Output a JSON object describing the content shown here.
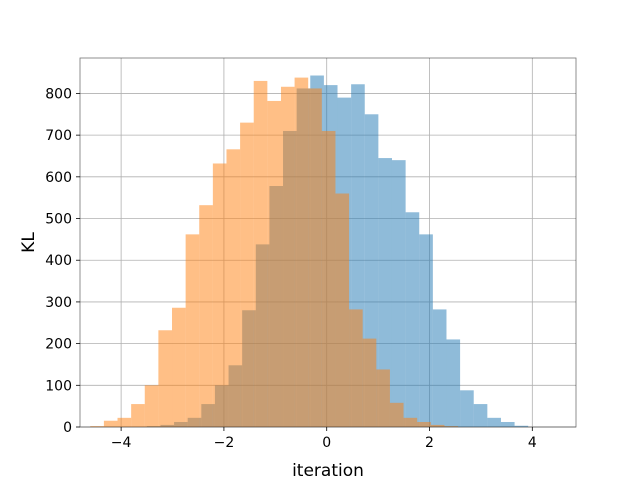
{
  "chart_data": {
    "type": "bar",
    "subtype": "histogram",
    "title": "",
    "xlabel": "iteration",
    "ylabel": "KL",
    "xlim": [
      -4.8,
      4.85
    ],
    "ylim": [
      0,
      885
    ],
    "x_ticks": [
      -4,
      -2,
      0,
      2,
      4
    ],
    "x_tick_labels": [
      "−4",
      "−2",
      "0",
      "2",
      "4"
    ],
    "y_ticks": [
      0,
      100,
      200,
      300,
      400,
      500,
      600,
      700,
      800
    ],
    "y_tick_labels": [
      "0",
      "100",
      "200",
      "300",
      "400",
      "500",
      "600",
      "700",
      "800"
    ],
    "grid": true,
    "legend": "none",
    "series": [
      {
        "color": "#1f77b4",
        "alpha": 0.5,
        "bin_start": -3.5,
        "bin_width": 0.265,
        "values": [
          2,
          5,
          12,
          22,
          55,
          100,
          148,
          280,
          438,
          578,
          710,
          812,
          843,
          820,
          790,
          822,
          750,
          645,
          640,
          515,
          462,
          282,
          210,
          88,
          55,
          22,
          12,
          3
        ]
      },
      {
        "color": "#ff7f0e",
        "alpha": 0.5,
        "bin_start": -4.6,
        "bin_width": 0.265,
        "values": [
          2,
          15,
          22,
          55,
          100,
          232,
          286,
          462,
          532,
          632,
          666,
          730,
          830,
          782,
          816,
          838,
          812,
          710,
          560,
          282,
          212,
          138,
          58,
          22,
          12,
          5,
          2
        ]
      }
    ]
  }
}
